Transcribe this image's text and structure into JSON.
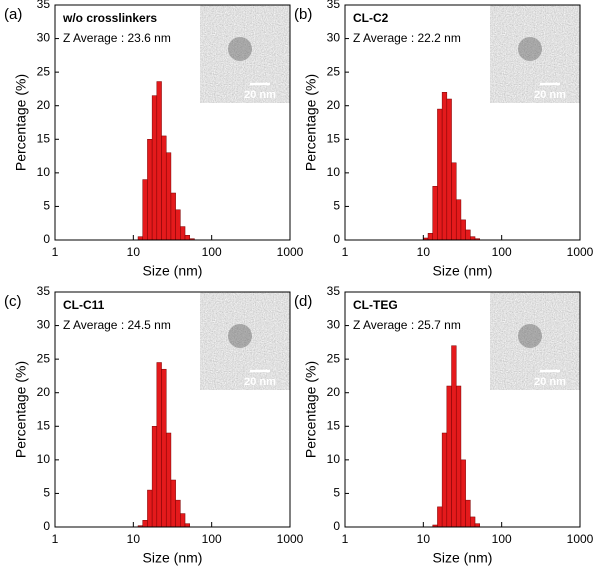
{
  "chart_data": [
    {
      "type": "histogram",
      "panel_label": "(a)",
      "title": "w/o crosslinkers",
      "annotation": "Z Average : 23.6 nm",
      "inset_scale": "20 nm",
      "xlabel": "Size (nm)",
      "ylabel": "Percentage (%)",
      "log_x": true,
      "color": "#e41a1c",
      "bins": [
        10.0,
        11.48,
        13.18,
        15.14,
        17.38,
        19.95,
        22.91,
        26.3,
        30.2,
        34.67,
        39.81,
        45.71,
        52.48,
        60.26,
        69.18
      ],
      "values": [
        0,
        0.5,
        9,
        15,
        21.5,
        23.6,
        15.5,
        13,
        7,
        4.5,
        2,
        0.7,
        0.2,
        0
      ],
      "xlim": [
        1,
        1000
      ],
      "xticks": [
        1,
        10,
        100,
        1000
      ],
      "ylim": [
        0,
        35
      ],
      "yticks": [
        0,
        5,
        10,
        15,
        20,
        25,
        30,
        35
      ]
    },
    {
      "type": "histogram",
      "panel_label": "(b)",
      "title": "CL-C2",
      "annotation": "Z Average : 22.2 nm",
      "inset_scale": "20 nm",
      "xlabel": "Size (nm)",
      "ylabel": "Percentage (%)",
      "log_x": true,
      "color": "#e41a1c",
      "bins": [
        10.0,
        11.48,
        13.18,
        15.14,
        17.38,
        19.95,
        22.91,
        26.3,
        30.2,
        34.67,
        39.81,
        45.71,
        52.48,
        60.26,
        69.18
      ],
      "values": [
        0.3,
        1,
        8,
        19.5,
        22,
        21,
        11.5,
        6,
        3,
        1.5,
        0.5,
        0.2,
        0,
        0
      ],
      "xlim": [
        1,
        1000
      ],
      "xticks": [
        1,
        10,
        100,
        1000
      ],
      "ylim": [
        0,
        35
      ],
      "yticks": [
        0,
        5,
        10,
        15,
        20,
        25,
        30,
        35
      ]
    },
    {
      "type": "histogram",
      "panel_label": "(c)",
      "title": "CL-C11",
      "annotation": "Z Average : 24.5 nm",
      "inset_scale": "20 nm",
      "xlabel": "Size (nm)",
      "ylabel": "Percentage (%)",
      "log_x": true,
      "color": "#e41a1c",
      "bins": [
        10.0,
        11.48,
        13.18,
        15.14,
        17.38,
        19.95,
        22.91,
        26.3,
        30.2,
        34.67,
        39.81,
        45.71,
        52.48,
        60.26,
        69.18
      ],
      "values": [
        0,
        0.2,
        1,
        5.5,
        15,
        24.5,
        23.5,
        14,
        7,
        4,
        2,
        0.5,
        0,
        0
      ],
      "xlim": [
        1,
        1000
      ],
      "xticks": [
        1,
        10,
        100,
        1000
      ],
      "ylim": [
        0,
        35
      ],
      "yticks": [
        0,
        5,
        10,
        15,
        20,
        25,
        30,
        35
      ]
    },
    {
      "type": "histogram",
      "panel_label": "(d)",
      "title": "CL-TEG",
      "annotation": "Z Average : 25.7 nm",
      "inset_scale": "20 nm",
      "xlabel": "Size (nm)",
      "ylabel": "Percentage (%)",
      "log_x": true,
      "color": "#e41a1c",
      "bins": [
        10.0,
        11.48,
        13.18,
        15.14,
        17.38,
        19.95,
        22.91,
        26.3,
        30.2,
        34.67,
        39.81,
        45.71,
        52.48,
        60.26,
        69.18
      ],
      "values": [
        0,
        0,
        0.3,
        3,
        14,
        21,
        27,
        21,
        10,
        4,
        1.5,
        0.5,
        0,
        0
      ],
      "xlim": [
        1,
        1000
      ],
      "xticks": [
        1,
        10,
        100,
        1000
      ],
      "ylim": [
        0,
        35
      ],
      "yticks": [
        0,
        5,
        10,
        15,
        20,
        25,
        30,
        35
      ]
    }
  ]
}
